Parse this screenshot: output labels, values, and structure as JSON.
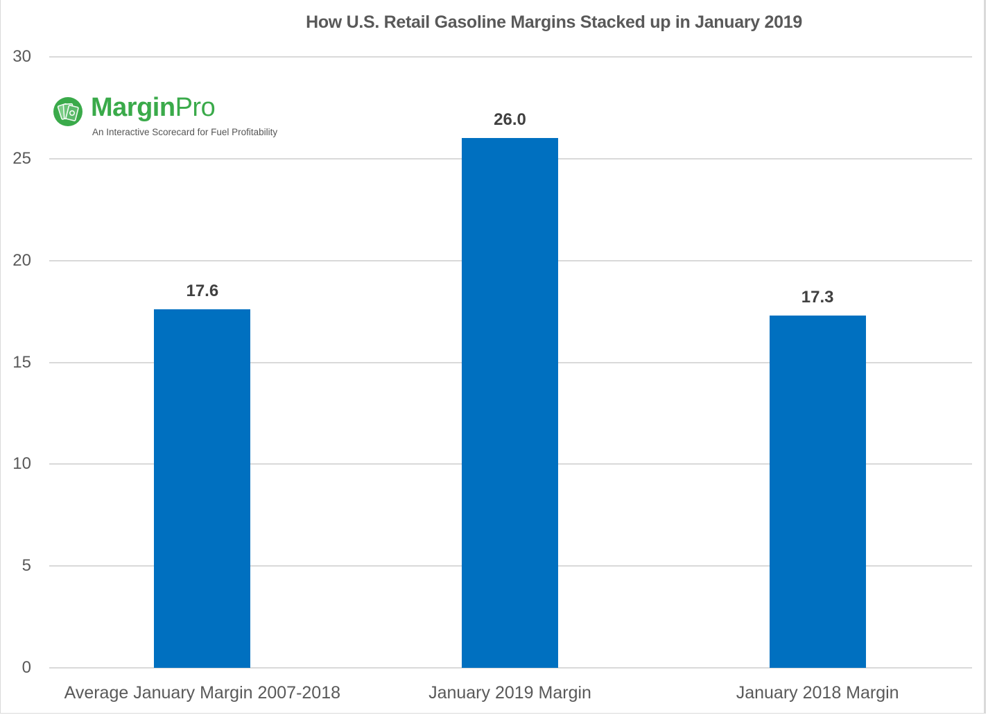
{
  "chart_data": {
    "type": "bar",
    "title": "How U.S. Retail Gasoline Margins Stacked up in January 2019",
    "categories": [
      "Average January Margin 2007-2018",
      "January 2019 Margin",
      "January 2018 Margin"
    ],
    "values": [
      17.6,
      26.0,
      17.3
    ],
    "value_labels": [
      "17.6",
      "26.0",
      "17.3"
    ],
    "xlabel": "",
    "ylabel": "",
    "ylim": [
      0,
      30
    ],
    "yticks": [
      "0",
      "5",
      "10",
      "15",
      "20",
      "25",
      "30"
    ],
    "grid": true,
    "legend": null,
    "bar_color": "#0070c0"
  },
  "logo": {
    "name_bold": "Margin",
    "name_light": "Pro",
    "tagline": "An Interactive Scorecard for Fuel Profitability",
    "icon": "money-bills-icon",
    "color": "#3aaa4a"
  }
}
